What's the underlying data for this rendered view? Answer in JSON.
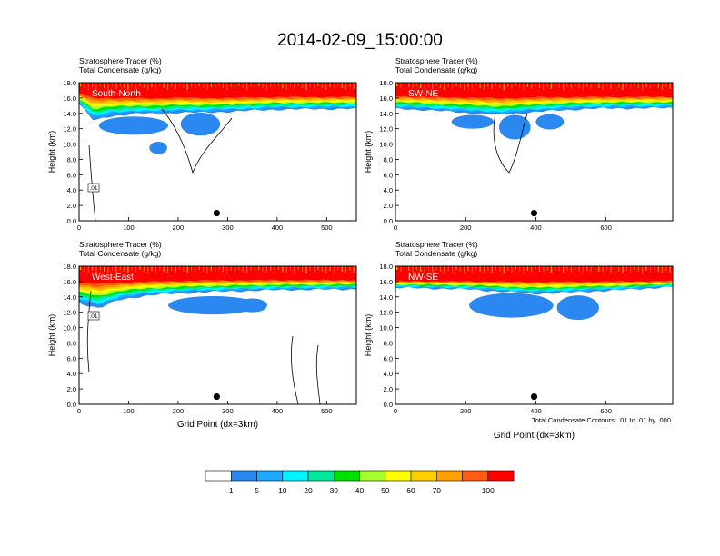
{
  "figure_title": "2014-02-09_15:00:00",
  "contour_note": "Total Condensate Contours: .01 to .01 by .000",
  "x_axis_label": "Grid Point (dx=3km)",
  "colorbar": {
    "colors": [
      "#ffffff",
      "#2a88f0",
      "#1ea8ff",
      "#00f4ff",
      "#00e89a",
      "#00e100",
      "#a9ff2c",
      "#ffff00",
      "#ffcf00",
      "#ffa000",
      "#ff5b12",
      "#ff0000"
    ],
    "labels": [
      "1",
      "5",
      "10",
      "20",
      "30",
      "40",
      "50",
      "60",
      "70",
      "100"
    ]
  },
  "chart_data": [
    {
      "type": "contour",
      "panel": "South-North",
      "title_line1": "Stratosphere Tracer   (%)",
      "title_line2": "Total Condensate   (g/kg)",
      "ylabel": "Height (km)",
      "xlabel": "",
      "xlim": [
        0,
        560
      ],
      "ylim": [
        0,
        18
      ],
      "xticks": [
        "0",
        "100",
        "200",
        "300",
        "400",
        "500"
      ],
      "yticks": [
        "0.0",
        "2.0",
        "4.0",
        "6.0",
        "8.0",
        "10.0",
        "12.0",
        "14.0",
        "16.0",
        "18.0"
      ],
      "contour_label": ".01",
      "marker": {
        "x": 278,
        "y": 1.0
      },
      "tracer_profile": [
        {
          "x": 0,
          "base": 15.2,
          "top": 16.8
        },
        {
          "x": 30,
          "base": 13.0,
          "top": 16.5
        },
        {
          "x": 60,
          "base": 13.6,
          "top": 16.4
        },
        {
          "x": 120,
          "base": 14.0,
          "top": 16.3
        },
        {
          "x": 160,
          "base": 13.9,
          "top": 16.3
        },
        {
          "x": 200,
          "base": 14.1,
          "top": 16.4
        },
        {
          "x": 260,
          "base": 14.1,
          "top": 16.3
        },
        {
          "x": 400,
          "base": 14.5,
          "top": 16.4
        },
        {
          "x": 560,
          "base": 14.6,
          "top": 16.4
        }
      ]
    },
    {
      "type": "contour",
      "panel": "SW-NE",
      "title_line1": "Stratosphere Tracer   (%)",
      "title_line2": "Total Condensate   (g/kg)",
      "ylabel": "Height (km)",
      "xlabel": "",
      "xlim": [
        0,
        790
      ],
      "ylim": [
        0,
        18
      ],
      "xticks": [
        "0",
        "200",
        "400",
        "600"
      ],
      "yticks": [
        "0.0",
        "2.0",
        "4.0",
        "6.0",
        "8.0",
        "10.0",
        "12.0",
        "14.0",
        "16.0",
        "18.0"
      ],
      "contour_label": "",
      "marker": {
        "x": 395,
        "y": 1.0
      },
      "tracer_profile": [
        {
          "x": 0,
          "base": 14.6,
          "top": 16.5
        },
        {
          "x": 100,
          "base": 14.4,
          "top": 16.4
        },
        {
          "x": 220,
          "base": 14.0,
          "top": 16.4
        },
        {
          "x": 300,
          "base": 13.8,
          "top": 16.3
        },
        {
          "x": 400,
          "base": 14.2,
          "top": 16.4
        },
        {
          "x": 550,
          "base": 14.6,
          "top": 16.4
        },
        {
          "x": 790,
          "base": 14.7,
          "top": 16.4
        }
      ]
    },
    {
      "type": "contour",
      "panel": "West-East",
      "title_line1": "Stratosphere Tracer   (%)",
      "title_line2": "Total Condensate   (g/kg)",
      "ylabel": "Height (km)",
      "xlabel": "Grid Point (dx=3km)",
      "xlim": [
        0,
        560
      ],
      "ylim": [
        0,
        18
      ],
      "xticks": [
        "0",
        "100",
        "200",
        "300",
        "400",
        "500"
      ],
      "yticks": [
        "0.0",
        "2.0",
        "4.0",
        "6.0",
        "8.0",
        "10.0",
        "12.0",
        "14.0",
        "16.0",
        "18.0"
      ],
      "contour_label": ".01",
      "marker": {
        "x": 278,
        "y": 1.0
      },
      "tracer_profile": [
        {
          "x": 0,
          "base": 13.2,
          "top": 16.3
        },
        {
          "x": 40,
          "base": 12.5,
          "top": 16.2
        },
        {
          "x": 80,
          "base": 13.6,
          "top": 16.2
        },
        {
          "x": 140,
          "base": 14.2,
          "top": 16.3
        },
        {
          "x": 240,
          "base": 14.6,
          "top": 16.4
        },
        {
          "x": 400,
          "base": 14.9,
          "top": 16.4
        },
        {
          "x": 560,
          "base": 15.0,
          "top": 16.4
        }
      ]
    },
    {
      "type": "contour",
      "panel": "NW-SE",
      "title_line1": "Stratosphere Tracer   (%)",
      "title_line2": "Total Condensate   (g/kg)",
      "ylabel": "Height (km)",
      "xlabel": "Grid Point (dx=3km)",
      "xlim": [
        0,
        790
      ],
      "ylim": [
        0,
        18
      ],
      "xticks": [
        "0",
        "200",
        "400",
        "600"
      ],
      "yticks": [
        "0.0",
        "2.0",
        "4.0",
        "6.0",
        "8.0",
        "10.0",
        "12.0",
        "14.0",
        "16.0",
        "18.0"
      ],
      "contour_label": "",
      "marker": {
        "x": 395,
        "y": 1.0
      },
      "tracer_profile": [
        {
          "x": 0,
          "base": 15.2,
          "top": 16.2
        },
        {
          "x": 200,
          "base": 15.0,
          "top": 16.2
        },
        {
          "x": 400,
          "base": 14.4,
          "top": 16.2
        },
        {
          "x": 600,
          "base": 14.8,
          "top": 16.2
        },
        {
          "x": 790,
          "base": 15.3,
          "top": 16.2
        }
      ]
    }
  ]
}
